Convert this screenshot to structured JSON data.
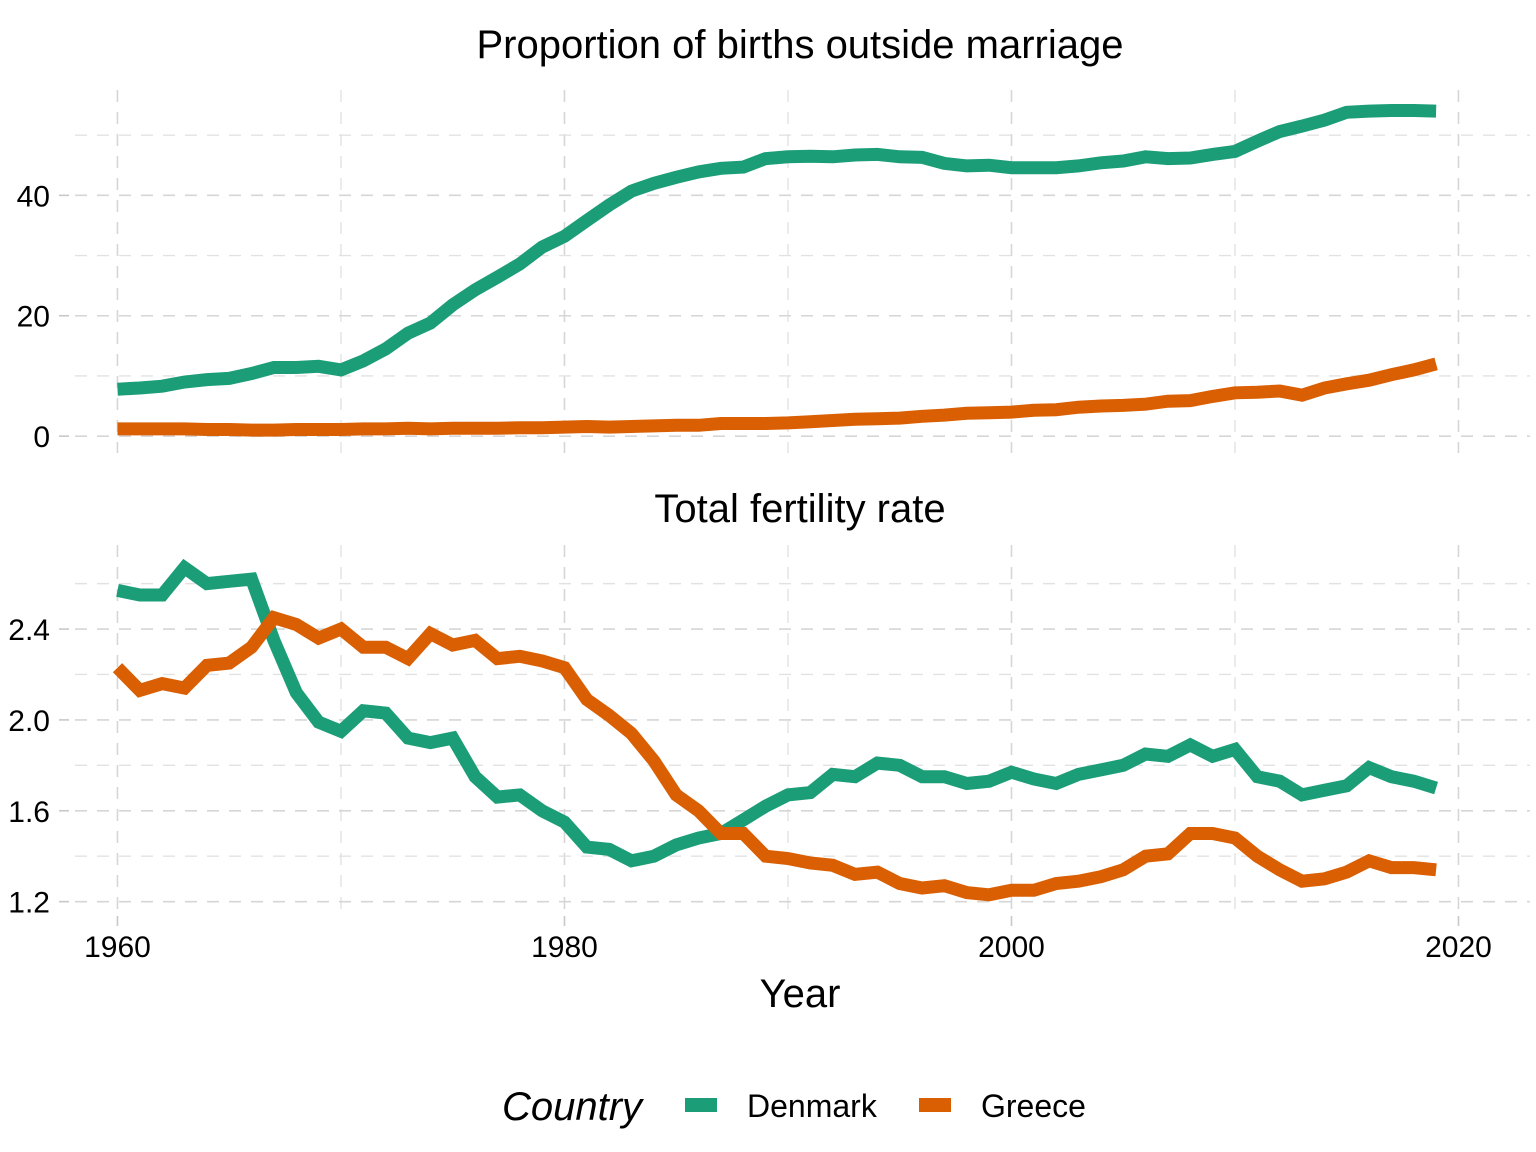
{
  "chart_data": {
    "type": "line",
    "xlabel": "Year",
    "x_ticks": [
      "1960",
      "1980",
      "2000",
      "2020"
    ],
    "x_tick_values": [
      1960,
      1980,
      2000,
      2020
    ],
    "xlim": [
      1958.1,
      2023.2
    ],
    "legend": {
      "title": "Country",
      "position": "bottom",
      "entries": [
        {
          "name": "Denmark",
          "color": "#1b9e77"
        },
        {
          "name": "Greece",
          "color": "#d95f02"
        }
      ]
    },
    "grid": true,
    "panels": [
      {
        "title": "Proportion of births outside marriage",
        "ylabel": "",
        "y_ticks": [
          "0",
          "20",
          "40"
        ],
        "y_tick_values": [
          0,
          20,
          40
        ],
        "y_minor": [
          10,
          30,
          50
        ],
        "ylim": [
          -2.8,
          57.5
        ],
        "x": [
          1960,
          1961,
          1962,
          1963,
          1964,
          1965,
          1966,
          1967,
          1968,
          1969,
          1970,
          1971,
          1972,
          1973,
          1974,
          1975,
          1976,
          1977,
          1978,
          1979,
          1980,
          1981,
          1982,
          1983,
          1984,
          1985,
          1986,
          1987,
          1988,
          1989,
          1990,
          1991,
          1992,
          1993,
          1994,
          1995,
          1996,
          1997,
          1998,
          1999,
          2000,
          2001,
          2002,
          2003,
          2004,
          2005,
          2006,
          2007,
          2008,
          2009,
          2010,
          2011,
          2012,
          2013,
          2014,
          2015,
          2016,
          2017,
          2018,
          2019
        ],
        "series": [
          {
            "name": "Denmark",
            "values": [
              7.8,
              8.0,
              8.3,
              9.0,
              9.4,
              9.6,
              10.4,
              11.4,
              11.4,
              11.6,
              11.0,
              12.5,
              14.5,
              17.1,
              18.8,
              21.8,
              24.3,
              26.4,
              28.6,
              31.4,
              33.2,
              35.8,
              38.4,
              40.7,
              42.0,
              43.0,
              43.9,
              44.5,
              44.7,
              46.1,
              46.4,
              46.5,
              46.4,
              46.7,
              46.8,
              46.4,
              46.3,
              45.3,
              44.9,
              45.0,
              44.6,
              44.6,
              44.6,
              44.9,
              45.4,
              45.7,
              46.4,
              46.1,
              46.2,
              46.8,
              47.3,
              49.0,
              50.6,
              51.5,
              52.5,
              53.8,
              54.0,
              54.1,
              54.1,
              54.0
            ],
            "color": "#1b9e77"
          },
          {
            "name": "Greece",
            "values": [
              1.2,
              1.2,
              1.2,
              1.2,
              1.1,
              1.1,
              1.0,
              1.0,
              1.1,
              1.1,
              1.1,
              1.2,
              1.2,
              1.3,
              1.2,
              1.3,
              1.3,
              1.3,
              1.4,
              1.4,
              1.5,
              1.6,
              1.5,
              1.6,
              1.7,
              1.8,
              1.8,
              2.1,
              2.1,
              2.1,
              2.2,
              2.4,
              2.6,
              2.8,
              2.9,
              3.0,
              3.3,
              3.5,
              3.8,
              3.9,
              4.0,
              4.3,
              4.4,
              4.8,
              5.0,
              5.1,
              5.3,
              5.8,
              5.9,
              6.6,
              7.2,
              7.3,
              7.5,
              6.8,
              8.0,
              8.7,
              9.3,
              10.2,
              11.0,
              12.0
            ],
            "color": "#d95f02"
          }
        ]
      },
      {
        "title": "Total fertility rate",
        "ylabel": "",
        "y_ticks": [
          "1.2",
          "1.6",
          "2.0",
          "2.4"
        ],
        "y_tick_values": [
          1.2,
          1.6,
          2.0,
          2.4
        ],
        "y_minor": [
          1.4,
          1.8,
          2.2,
          2.6
        ],
        "ylim": [
          1.15,
          2.77
        ],
        "x": [
          1960,
          1961,
          1962,
          1963,
          1964,
          1965,
          1966,
          1967,
          1968,
          1969,
          1970,
          1971,
          1972,
          1973,
          1974,
          1975,
          1976,
          1977,
          1978,
          1979,
          1980,
          1981,
          1982,
          1983,
          1984,
          1985,
          1986,
          1987,
          1988,
          1989,
          1990,
          1991,
          1992,
          1993,
          1994,
          1995,
          1996,
          1997,
          1998,
          1999,
          2000,
          2001,
          2002,
          2003,
          2004,
          2005,
          2006,
          2007,
          2008,
          2009,
          2010,
          2011,
          2012,
          2013,
          2014,
          2015,
          2016,
          2017,
          2018,
          2019
        ],
        "series": [
          {
            "name": "Denmark",
            "values": [
              2.57,
              2.55,
              2.55,
              2.67,
              2.6,
              2.61,
              2.62,
              2.35,
              2.12,
              1.99,
              1.95,
              2.04,
              2.03,
              1.92,
              1.9,
              1.92,
              1.75,
              1.66,
              1.67,
              1.6,
              1.55,
              1.44,
              1.43,
              1.38,
              1.4,
              1.45,
              1.48,
              1.5,
              1.56,
              1.62,
              1.67,
              1.68,
              1.76,
              1.75,
              1.81,
              1.8,
              1.75,
              1.75,
              1.72,
              1.73,
              1.77,
              1.74,
              1.72,
              1.76,
              1.78,
              1.8,
              1.85,
              1.84,
              1.89,
              1.84,
              1.87,
              1.75,
              1.73,
              1.67,
              1.69,
              1.71,
              1.79,
              1.75,
              1.73,
              1.7
            ],
            "color": "#1b9e77"
          },
          {
            "name": "Greece",
            "values": [
              2.23,
              2.13,
              2.16,
              2.14,
              2.24,
              2.25,
              2.32,
              2.45,
              2.42,
              2.36,
              2.4,
              2.32,
              2.32,
              2.27,
              2.38,
              2.33,
              2.35,
              2.27,
              2.28,
              2.26,
              2.23,
              2.09,
              2.02,
              1.94,
              1.82,
              1.67,
              1.6,
              1.5,
              1.5,
              1.4,
              1.39,
              1.37,
              1.36,
              1.32,
              1.33,
              1.28,
              1.26,
              1.27,
              1.24,
              1.23,
              1.25,
              1.25,
              1.28,
              1.29,
              1.31,
              1.34,
              1.4,
              1.41,
              1.5,
              1.5,
              1.48,
              1.4,
              1.34,
              1.29,
              1.3,
              1.33,
              1.38,
              1.35,
              1.35,
              1.34
            ],
            "color": "#d95f02"
          }
        ]
      }
    ]
  }
}
